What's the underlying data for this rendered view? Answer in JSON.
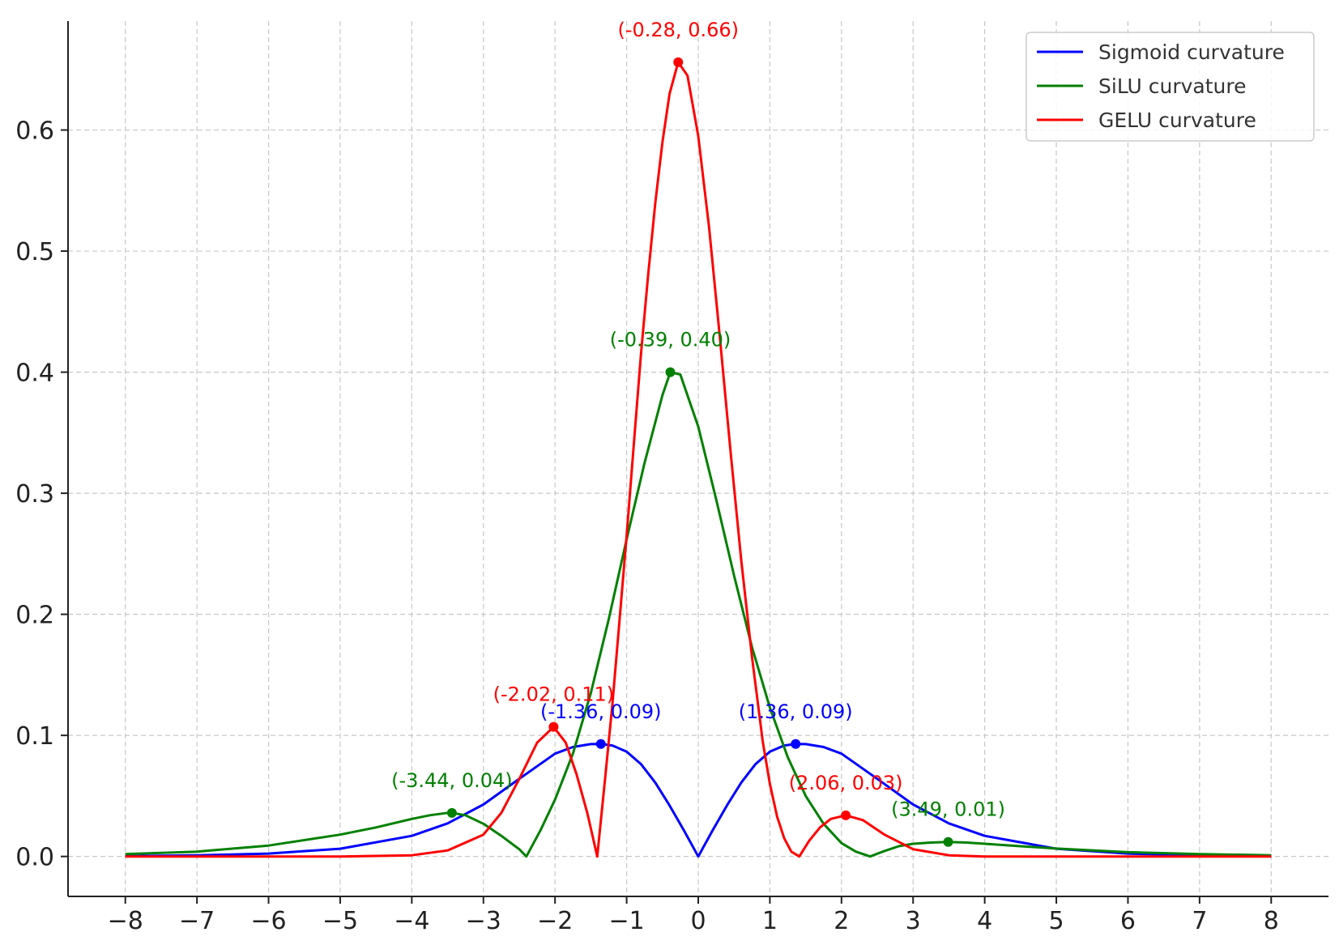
{
  "chart_data": {
    "type": "line",
    "title": "",
    "xlabel": "",
    "ylabel": "",
    "xlim": [
      -8.8,
      8.8
    ],
    "ylim": [
      -0.033,
      0.69
    ],
    "grid": true,
    "legend_position": "top-right",
    "x_ticks": [
      -8,
      -7,
      -6,
      -5,
      -4,
      -3,
      -2,
      -1,
      0,
      1,
      2,
      3,
      4,
      5,
      6,
      7,
      8
    ],
    "x_tick_labels": [
      "−8",
      "−7",
      "−6",
      "−5",
      "−4",
      "−3",
      "−2",
      "−1",
      "0",
      "1",
      "2",
      "3",
      "4",
      "5",
      "6",
      "7",
      "8"
    ],
    "y_ticks": [
      0.0,
      0.1,
      0.2,
      0.3,
      0.4,
      0.5,
      0.6
    ],
    "y_tick_labels": [
      "0.0",
      "0.1",
      "0.2",
      "0.3",
      "0.4",
      "0.5",
      "0.6"
    ],
    "series": [
      {
        "name": "Sigmoid curvature",
        "color": "#0000ff",
        "x": [
          -8,
          -7,
          -6,
          -5,
          -4,
          -3.5,
          -3,
          -2.5,
          -2,
          -1.75,
          -1.5,
          -1.36,
          -1.2,
          -1,
          -0.8,
          -0.6,
          -0.4,
          -0.2,
          0,
          0.2,
          0.4,
          0.6,
          0.8,
          1,
          1.2,
          1.36,
          1.5,
          1.75,
          2,
          2.5,
          3,
          3.5,
          4,
          5,
          6,
          7,
          8
        ],
        "y": [
          0.0003,
          0.0009,
          0.0024,
          0.0064,
          0.017,
          0.0273,
          0.0429,
          0.0641,
          0.0849,
          0.0904,
          0.0928,
          0.0929,
          0.0917,
          0.0866,
          0.0763,
          0.0609,
          0.0421,
          0.0215,
          0.0,
          0.0215,
          0.0421,
          0.0609,
          0.0763,
          0.0866,
          0.0917,
          0.0929,
          0.0928,
          0.0904,
          0.0849,
          0.0641,
          0.0429,
          0.0273,
          0.017,
          0.0064,
          0.0024,
          0.0009,
          0.0003
        ]
      },
      {
        "name": "SiLU curvature",
        "color": "#008000",
        "x": [
          -8,
          -7,
          -6,
          -5,
          -4.5,
          -4,
          -3.75,
          -3.5,
          -3.44,
          -3.25,
          -3,
          -2.75,
          -2.5,
          -2.4,
          -2.2,
          -2,
          -1.75,
          -1.5,
          -1.25,
          -1,
          -0.75,
          -0.5,
          -0.39,
          -0.25,
          0,
          0.25,
          0.5,
          0.75,
          1,
          1.25,
          1.5,
          1.75,
          2,
          2.2,
          2.4,
          2.6,
          2.8,
          3,
          3.25,
          3.49,
          3.75,
          4,
          4.5,
          5,
          6,
          7,
          8
        ],
        "y": [
          0.002,
          0.004,
          0.009,
          0.018,
          0.024,
          0.031,
          0.034,
          0.036,
          0.036,
          0.034,
          0.027,
          0.017,
          0.006,
          0.0,
          0.022,
          0.047,
          0.085,
          0.135,
          0.196,
          0.262,
          0.325,
          0.381,
          0.4,
          0.398,
          0.355,
          0.295,
          0.232,
          0.173,
          0.123,
          0.082,
          0.05,
          0.027,
          0.011,
          0.004,
          0.0,
          0.0045,
          0.0085,
          0.0105,
          0.0115,
          0.012,
          0.0115,
          0.0105,
          0.0085,
          0.0065,
          0.0035,
          0.002,
          0.001
        ]
      },
      {
        "name": "GELU curvature",
        "color": "#ff0000",
        "x": [
          -8,
          -5,
          -4,
          -3.5,
          -3,
          -2.75,
          -2.5,
          -2.25,
          -2.02,
          -1.85,
          -1.7,
          -1.55,
          -1.41,
          -1.3,
          -1.2,
          -1.1,
          -1,
          -0.9,
          -0.8,
          -0.7,
          -0.6,
          -0.5,
          -0.4,
          -0.28,
          -0.15,
          0,
          0.15,
          0.3,
          0.45,
          0.6,
          0.75,
          0.9,
          1,
          1.1,
          1.2,
          1.3,
          1.41,
          1.55,
          1.7,
          1.85,
          2.06,
          2.3,
          2.6,
          3,
          3.5,
          4,
          5,
          8
        ],
        "y": [
          0.0,
          0.0,
          0.001,
          0.005,
          0.018,
          0.036,
          0.064,
          0.094,
          0.107,
          0.094,
          0.068,
          0.036,
          0.0,
          0.065,
          0.125,
          0.195,
          0.265,
          0.34,
          0.415,
          0.48,
          0.54,
          0.59,
          0.63,
          0.656,
          0.645,
          0.595,
          0.52,
          0.43,
          0.335,
          0.245,
          0.165,
          0.095,
          0.06,
          0.033,
          0.015,
          0.004,
          0.0,
          0.013,
          0.024,
          0.031,
          0.034,
          0.03,
          0.018,
          0.006,
          0.001,
          0.0,
          0.0,
          0.0
        ]
      }
    ],
    "annotations": [
      {
        "label": "(-0.28, 0.66)",
        "x": -0.28,
        "y": 0.656,
        "color": "#ff0000"
      },
      {
        "label": "(-0.39, 0.40)",
        "x": -0.39,
        "y": 0.4,
        "color": "#008000"
      },
      {
        "label": "(-2.02, 0.11)",
        "x": -2.02,
        "y": 0.107,
        "color": "#ff0000"
      },
      {
        "label": "(-1.36, 0.09)",
        "x": -1.36,
        "y": 0.0929,
        "color": "#0000ff"
      },
      {
        "label": "(1.36, 0.09)",
        "x": 1.36,
        "y": 0.0929,
        "color": "#0000ff"
      },
      {
        "label": "(-3.44, 0.04)",
        "x": -3.44,
        "y": 0.036,
        "color": "#008000"
      },
      {
        "label": "(2.06, 0.03)",
        "x": 2.06,
        "y": 0.034,
        "color": "#ff0000"
      },
      {
        "label": "(3.49, 0.01)",
        "x": 3.49,
        "y": 0.012,
        "color": "#008000"
      }
    ]
  }
}
